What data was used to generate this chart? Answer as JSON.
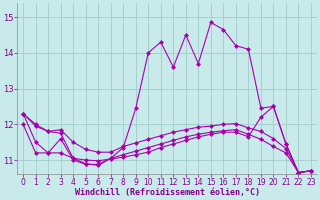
{
  "background_color": "#c8eaea",
  "grid_color": "#a0cccc",
  "line_color": "#aa00aa",
  "xlabel": "Windchill (Refroidissement éolien,°C)",
  "xlim": [
    -0.5,
    23.5
  ],
  "ylim": [
    10.6,
    15.4
  ],
  "yticks": [
    11,
    12,
    13,
    14,
    15
  ],
  "xticks": [
    0,
    1,
    2,
    3,
    4,
    5,
    6,
    7,
    8,
    9,
    10,
    11,
    12,
    13,
    14,
    15,
    16,
    17,
    18,
    19,
    20,
    21,
    22,
    23
  ],
  "series": [
    [
      12.3,
      11.95,
      11.8,
      11.75,
      11.05,
      10.9,
      10.85,
      11.05,
      11.35,
      12.45,
      14.0,
      14.3,
      13.6,
      14.5,
      13.7,
      14.85,
      14.65,
      14.2,
      14.1,
      12.45,
      12.5,
      11.45,
      10.65,
      10.7
    ],
    [
      12.0,
      11.2,
      11.2,
      11.6,
      11.0,
      10.88,
      10.88,
      11.05,
      11.15,
      11.25,
      11.35,
      11.45,
      11.55,
      11.65,
      11.72,
      11.78,
      11.82,
      11.85,
      11.72,
      11.58,
      11.38,
      11.2,
      10.65,
      10.7
    ],
    [
      12.3,
      11.5,
      11.2,
      11.2,
      11.05,
      11.0,
      10.98,
      11.03,
      11.08,
      11.15,
      11.22,
      11.35,
      11.45,
      11.55,
      11.65,
      11.72,
      11.78,
      11.78,
      11.65,
      12.2,
      12.5,
      11.45,
      10.65,
      10.7
    ],
    [
      12.3,
      12.0,
      11.8,
      11.85,
      11.5,
      11.3,
      11.22,
      11.22,
      11.38,
      11.48,
      11.58,
      11.68,
      11.78,
      11.85,
      11.92,
      11.95,
      12.0,
      12.02,
      11.9,
      11.8,
      11.6,
      11.32,
      10.65,
      10.7
    ]
  ],
  "marker": "D",
  "markersize": 2,
  "linewidth": 0.8,
  "tick_color": "#880088",
  "xlabel_fontsize": 6,
  "tick_fontsize": 5.5,
  "figwidth": 3.2,
  "figheight": 2.0,
  "dpi": 100
}
